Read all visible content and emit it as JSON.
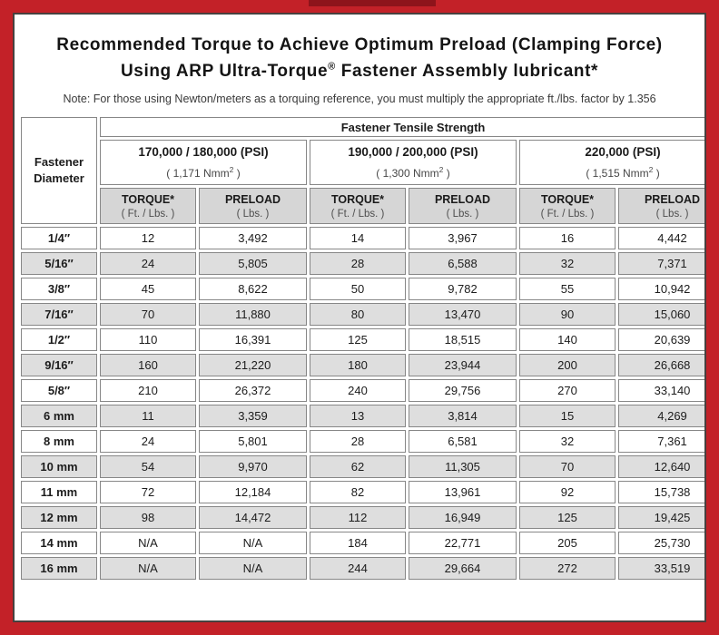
{
  "frame": {
    "border_color": "#c32128",
    "inner_border_color": "#47403f",
    "top_accent_color": "#8e141b"
  },
  "header": {
    "title_line1": "Recommended Torque to Achieve Optimum Preload (Clamping Force)",
    "title_line2_prefix": "Using ARP Ultra-Torque",
    "title_line2_sup": "®",
    "title_line2_suffix": " Fastener Assembly lubricant*",
    "note": "Note: For those using Newton/meters as a torquing reference, you must multiply the appropriate ft./lbs. factor by 1.356"
  },
  "table": {
    "tensile_header": "Fastener Tensile Strength",
    "corner": {
      "line1": "Fastener",
      "line2": "Diameter"
    },
    "groups": [
      {
        "psi": "170,000 / 180,000 (PSI)",
        "nmm_open": "( 1,171 Nmm",
        "nmm_sup": "2",
        "nmm_close": " )"
      },
      {
        "psi": "190,000 / 200,000 (PSI)",
        "nmm_open": "( 1,300 Nmm",
        "nmm_sup": "2",
        "nmm_close": " )"
      },
      {
        "psi": "220,000 (PSI)",
        "nmm_open": "( 1,515 Nmm",
        "nmm_sup": "2",
        "nmm_close": " )"
      }
    ],
    "col_headers": [
      {
        "label": "TORQUE*",
        "sub": "( Ft. / Lbs. )"
      },
      {
        "label": "PRELOAD",
        "sub": "( Lbs. )"
      },
      {
        "label": "TORQUE*",
        "sub": "( Ft. / Lbs. )"
      },
      {
        "label": "PRELOAD",
        "sub": "( Lbs. )"
      },
      {
        "label": "TORQUE*",
        "sub": "( Ft. / Lbs. )"
      },
      {
        "label": "PRELOAD",
        "sub": "( Lbs. )"
      }
    ],
    "rows": [
      {
        "diameter": "1/4″",
        "values": [
          "12",
          "3,492",
          "14",
          "3,967",
          "16",
          "4,442"
        ]
      },
      {
        "diameter": "5/16″",
        "values": [
          "24",
          "5,805",
          "28",
          "6,588",
          "32",
          "7,371"
        ]
      },
      {
        "diameter": "3/8″",
        "values": [
          "45",
          "8,622",
          "50",
          "9,782",
          "55",
          "10,942"
        ]
      },
      {
        "diameter": "7/16″",
        "values": [
          "70",
          "11,880",
          "80",
          "13,470",
          "90",
          "15,060"
        ]
      },
      {
        "diameter": "1/2″",
        "values": [
          "110",
          "16,391",
          "125",
          "18,515",
          "140",
          "20,639"
        ]
      },
      {
        "diameter": "9/16″",
        "values": [
          "160",
          "21,220",
          "180",
          "23,944",
          "200",
          "26,668"
        ]
      },
      {
        "diameter": "5/8″",
        "values": [
          "210",
          "26,372",
          "240",
          "29,756",
          "270",
          "33,140"
        ]
      },
      {
        "diameter": "6 mm",
        "values": [
          "11",
          "3,359",
          "13",
          "3,814",
          "15",
          "4,269"
        ]
      },
      {
        "diameter": "8 mm",
        "values": [
          "24",
          "5,801",
          "28",
          "6,581",
          "32",
          "7,361"
        ]
      },
      {
        "diameter": "10 mm",
        "values": [
          "54",
          "9,970",
          "62",
          "11,305",
          "70",
          "12,640"
        ]
      },
      {
        "diameter": "11 mm",
        "values": [
          "72",
          "12,184",
          "82",
          "13,961",
          "92",
          "15,738"
        ]
      },
      {
        "diameter": "12 mm",
        "values": [
          "98",
          "14,472",
          "112",
          "16,949",
          "125",
          "19,425"
        ]
      },
      {
        "diameter": "14 mm",
        "values": [
          "N/A",
          "N/A",
          "184",
          "22,771",
          "205",
          "25,730"
        ]
      },
      {
        "diameter": "16 mm",
        "values": [
          "N/A",
          "N/A",
          "244",
          "29,664",
          "272",
          "33,519"
        ]
      }
    ]
  }
}
